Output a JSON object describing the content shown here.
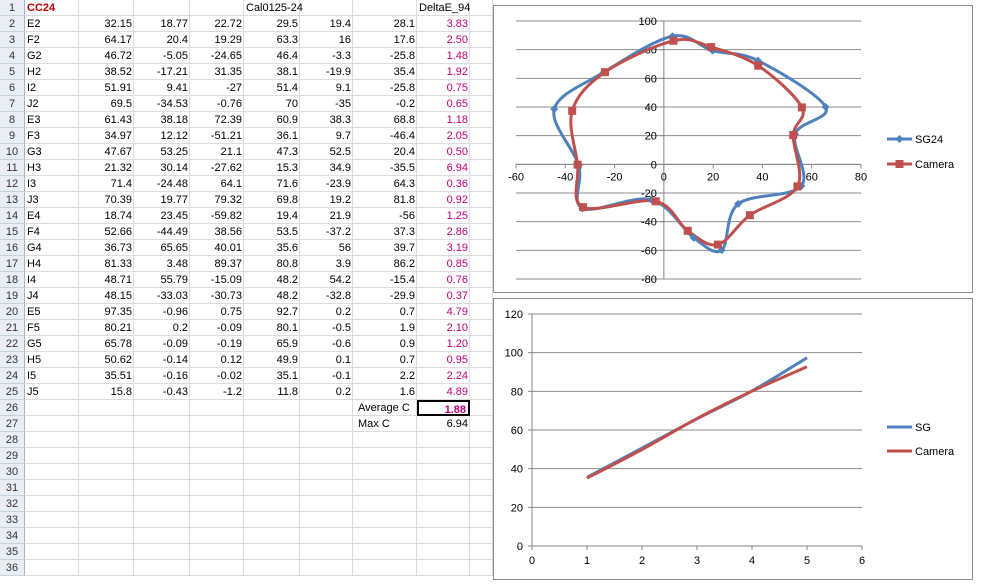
{
  "sheet": {
    "title_cell": "CC24",
    "cal_header": "Cal0125-24",
    "delta_header": "DeltaE_94",
    "row_numbers": [
      1,
      2,
      3,
      4,
      5,
      6,
      7,
      8,
      9,
      10,
      11,
      12,
      13,
      14,
      15,
      16,
      17,
      18,
      19,
      20,
      21,
      22,
      23,
      24,
      25,
      26,
      27,
      28,
      29,
      30,
      31,
      32,
      33,
      34,
      35,
      36
    ],
    "rows": [
      [
        "E2",
        "32.15",
        "18.77",
        "22.72",
        "29.5",
        "19.4",
        "28.1",
        "3.83"
      ],
      [
        "F2",
        "64.17",
        "20.4",
        "19.29",
        "63.3",
        "16",
        "17.6",
        "2.50"
      ],
      [
        "G2",
        "46.72",
        "-5.05",
        "-24.65",
        "46.4",
        "-3.3",
        "-25.8",
        "1.48"
      ],
      [
        "H2",
        "38.52",
        "-17.21",
        "31.35",
        "38.1",
        "-19.9",
        "35.4",
        "1.92"
      ],
      [
        "I2",
        "51.91",
        "9.41",
        "-27",
        "51.4",
        "9.1",
        "-25.8",
        "0.75"
      ],
      [
        "J2",
        "69.5",
        "-34.53",
        "-0.76",
        "70",
        "-35",
        "-0.2",
        "0.65"
      ],
      [
        "E3",
        "61.43",
        "38.18",
        "72.39",
        "60.9",
        "38.3",
        "68.8",
        "1.18"
      ],
      [
        "F3",
        "34.97",
        "12.12",
        "-51.21",
        "36.1",
        "9.7",
        "-46.4",
        "2.05"
      ],
      [
        "G3",
        "47.67",
        "53.25",
        "21.1",
        "47.3",
        "52.5",
        "20.4",
        "0.50"
      ],
      [
        "H3",
        "21.32",
        "30.14",
        "-27.62",
        "15.3",
        "34.9",
        "-35.5",
        "6.94"
      ],
      [
        "I3",
        "71.4",
        "-24.48",
        "64.1",
        "71.6",
        "-23.9",
        "64.3",
        "0.36"
      ],
      [
        "J3",
        "70.39",
        "19.77",
        "79.32",
        "69.8",
        "19.2",
        "81.8",
        "0.92"
      ],
      [
        "E4",
        "18.74",
        "23.45",
        "-59.82",
        "19.4",
        "21.9",
        "-56",
        "1.25"
      ],
      [
        "F4",
        "52.66",
        "-44.49",
        "38.56",
        "53.5",
        "-37.2",
        "37.3",
        "2.86"
      ],
      [
        "G4",
        "36.73",
        "65.65",
        "40.01",
        "35.6",
        "56",
        "39.7",
        "3.19"
      ],
      [
        "H4",
        "81.33",
        "3.48",
        "89.37",
        "80.8",
        "3.9",
        "86.2",
        "0.85"
      ],
      [
        "I4",
        "48.71",
        "55.79",
        "-15.09",
        "48.2",
        "54.2",
        "-15.4",
        "0.76"
      ],
      [
        "J4",
        "48.15",
        "-33.03",
        "-30.73",
        "48.2",
        "-32.8",
        "-29.9",
        "0.37"
      ],
      [
        "E5",
        "97.35",
        "-0.96",
        "0.75",
        "92.7",
        "0.2",
        "0.7",
        "4.79"
      ],
      [
        "F5",
        "80.21",
        "0.2",
        "-0.09",
        "80.1",
        "-0.5",
        "1.9",
        "2.10"
      ],
      [
        "G5",
        "65.78",
        "-0.09",
        "-0.19",
        "65.9",
        "-0.6",
        "0.9",
        "1.20"
      ],
      [
        "H5",
        "50.62",
        "-0.14",
        "0.12",
        "49.9",
        "0.1",
        "0.7",
        "0.95"
      ],
      [
        "I5",
        "35.51",
        "-0.16",
        "-0.02",
        "35.1",
        "-0.1",
        "2.2",
        "2.24"
      ],
      [
        "J5",
        "15.8",
        "-0.43",
        "-1.2",
        "11.8",
        "0.2",
        "1.6",
        "4.89"
      ]
    ],
    "avg_label": "Average C",
    "avg_value": "1.88",
    "max_label": "Max C",
    "max_value": "6.94"
  },
  "colors": {
    "sg_series": "#4f81bd",
    "camera_series": "#c0504d",
    "delta_text": "#c0007a",
    "title_text": "#c00000"
  },
  "chart_data": [
    {
      "type": "scatter",
      "xlim": [
        -60,
        80
      ],
      "ylim": [
        -80,
        100
      ],
      "x_ticks": [
        "-60",
        "-40",
        "-20",
        "0",
        "20",
        "40",
        "60",
        "80"
      ],
      "y_ticks": [
        "100",
        "80",
        "60",
        "40",
        "20",
        "0",
        "-20",
        "-40",
        "-60",
        "-80"
      ],
      "legend_position": "right",
      "grid": "horizontal",
      "series": [
        {
          "name": "SG24",
          "color": "#4f81bd",
          "marker": "diamond",
          "points": [
            [
              3.48,
              89.37
            ],
            [
              19.77,
              79.32
            ],
            [
              38.18,
              72.39
            ],
            [
              65.65,
              40.01
            ],
            [
              53.25,
              21.1
            ],
            [
              55.79,
              -15.09
            ],
            [
              30.14,
              -27.62
            ],
            [
              23.45,
              -59.82
            ],
            [
              12.12,
              -51.21
            ],
            [
              -5.05,
              -24.65
            ],
            [
              -33.03,
              -30.73
            ],
            [
              -34.53,
              -0.76
            ],
            [
              -44.49,
              38.56
            ],
            [
              -24.48,
              64.1
            ],
            [
              3.48,
              89.37
            ]
          ]
        },
        {
          "name": "Camera",
          "color": "#c0504d",
          "marker": "square",
          "points": [
            [
              3.9,
              86.2
            ],
            [
              19.2,
              81.8
            ],
            [
              38.3,
              68.8
            ],
            [
              56,
              39.7
            ],
            [
              52.5,
              20.4
            ],
            [
              54.2,
              -15.4
            ],
            [
              34.9,
              -35.5
            ],
            [
              21.9,
              -56
            ],
            [
              9.7,
              -46.4
            ],
            [
              -3.3,
              -25.8
            ],
            [
              -32.8,
              -29.9
            ],
            [
              -35,
              -0.2
            ],
            [
              -37.2,
              37.3
            ],
            [
              -23.9,
              64.3
            ],
            [
              3.9,
              86.2
            ]
          ]
        }
      ]
    },
    {
      "type": "line",
      "xlim": [
        0,
        6
      ],
      "ylim": [
        0,
        120
      ],
      "x_ticks": [
        "0",
        "1",
        "2",
        "3",
        "4",
        "5",
        "6"
      ],
      "y_ticks": [
        "120",
        "100",
        "80",
        "60",
        "40",
        "20",
        "0"
      ],
      "legend_position": "right",
      "grid": "horizontal",
      "x": [
        1,
        2,
        3,
        4,
        5
      ],
      "series": [
        {
          "name": "SG",
          "color": "#4f81bd",
          "values": [
            35.51,
            50.62,
            65.78,
            80.21,
            97.35
          ]
        },
        {
          "name": "Camera",
          "color": "#c0504d",
          "values": [
            35.1,
            49.9,
            65.9,
            80.1,
            92.7
          ]
        }
      ]
    }
  ]
}
